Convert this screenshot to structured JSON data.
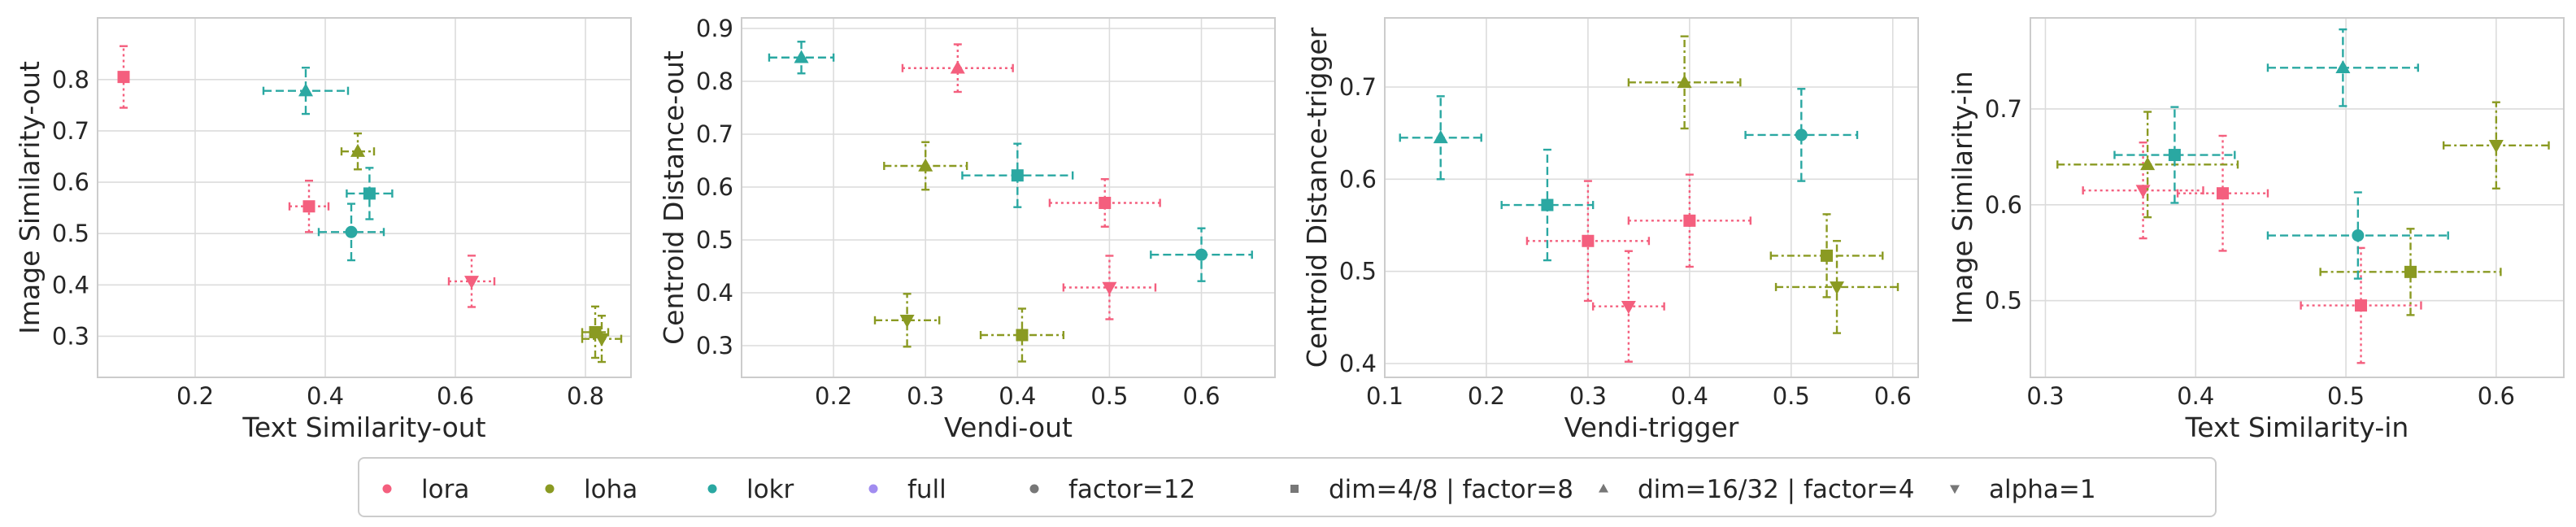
{
  "colors": {
    "lora": "#f45f7e",
    "loha": "#8a9a22",
    "lokr": "#2aa8a2",
    "full": "#a18cf0",
    "neutral": "#777777",
    "grid": "#dcdcdc",
    "frame": "#cccccc",
    "text": "#262626"
  },
  "legend": {
    "entries": [
      {
        "label": "lora",
        "color": "lora",
        "marker": "dot"
      },
      {
        "label": "loha",
        "color": "loha",
        "marker": "dot"
      },
      {
        "label": "lokr",
        "color": "lokr",
        "marker": "dot"
      },
      {
        "label": "full",
        "color": "full",
        "marker": "dot"
      },
      {
        "label": "factor=12",
        "color": "neutral",
        "marker": "dot"
      },
      {
        "label": "dim=4/8 | factor=8",
        "color": "neutral",
        "marker": "square"
      },
      {
        "label": "dim=16/32 | factor=4",
        "color": "neutral",
        "marker": "triangle"
      },
      {
        "label": "alpha=1",
        "color": "neutral",
        "marker": "tri-down"
      }
    ]
  },
  "chart_data": [
    {
      "type": "scatter",
      "xlabel": "Text Similarity-out",
      "ylabel": "Image Similarity-out",
      "xlim": [
        0.05,
        0.87
      ],
      "ylim": [
        0.22,
        0.92
      ],
      "xticks": [
        0.2,
        0.4,
        0.6,
        0.8
      ],
      "yticks": [
        0.3,
        0.4,
        0.5,
        0.6,
        0.7,
        0.8
      ],
      "tick_decimals": 1,
      "grid": true,
      "points": [
        {
          "algo": "lora",
          "marker": "square",
          "x": 0.09,
          "y": 0.805,
          "xerr": 0.0,
          "yerr": 0.06
        },
        {
          "algo": "lora",
          "marker": "square",
          "x": 0.375,
          "y": 0.553,
          "xerr": 0.03,
          "yerr": 0.05
        },
        {
          "algo": "lora",
          "marker": "tri-down",
          "x": 0.625,
          "y": 0.407,
          "xerr": 0.035,
          "yerr": 0.05
        },
        {
          "algo": "loha",
          "marker": "triangle",
          "x": 0.45,
          "y": 0.66,
          "xerr": 0.025,
          "yerr": 0.035
        },
        {
          "algo": "loha",
          "marker": "square",
          "x": 0.815,
          "y": 0.308,
          "xerr": 0.02,
          "yerr": 0.05
        },
        {
          "algo": "loha",
          "marker": "tri-down",
          "x": 0.825,
          "y": 0.295,
          "xerr": 0.03,
          "yerr": 0.045
        },
        {
          "algo": "lokr",
          "marker": "triangle",
          "x": 0.37,
          "y": 0.778,
          "xerr": 0.065,
          "yerr": 0.045
        },
        {
          "algo": "lokr",
          "marker": "square",
          "x": 0.468,
          "y": 0.578,
          "xerr": 0.035,
          "yerr": 0.05
        },
        {
          "algo": "lokr",
          "marker": "dot",
          "x": 0.44,
          "y": 0.503,
          "xerr": 0.05,
          "yerr": 0.055
        }
      ]
    },
    {
      "type": "scatter",
      "xlabel": "Vendi-out",
      "ylabel": "Centroid Distance-out",
      "xlim": [
        0.1,
        0.68
      ],
      "ylim": [
        0.24,
        0.92
      ],
      "xticks": [
        0.2,
        0.3,
        0.4,
        0.5,
        0.6
      ],
      "yticks": [
        0.3,
        0.4,
        0.5,
        0.6,
        0.7,
        0.8,
        0.9
      ],
      "tick_decimals": 1,
      "grid": true,
      "points": [
        {
          "algo": "lora",
          "marker": "triangle",
          "x": 0.335,
          "y": 0.825,
          "xerr": 0.06,
          "yerr": 0.045
        },
        {
          "algo": "lora",
          "marker": "square",
          "x": 0.495,
          "y": 0.57,
          "xerr": 0.06,
          "yerr": 0.045
        },
        {
          "algo": "lora",
          "marker": "tri-down",
          "x": 0.5,
          "y": 0.41,
          "xerr": 0.05,
          "yerr": 0.06
        },
        {
          "algo": "loha",
          "marker": "triangle",
          "x": 0.3,
          "y": 0.64,
          "xerr": 0.045,
          "yerr": 0.045
        },
        {
          "algo": "loha",
          "marker": "tri-down",
          "x": 0.28,
          "y": 0.348,
          "xerr": 0.035,
          "yerr": 0.05
        },
        {
          "algo": "loha",
          "marker": "square",
          "x": 0.405,
          "y": 0.32,
          "xerr": 0.045,
          "yerr": 0.05
        },
        {
          "algo": "lokr",
          "marker": "triangle",
          "x": 0.165,
          "y": 0.845,
          "xerr": 0.035,
          "yerr": 0.03
        },
        {
          "algo": "lokr",
          "marker": "square",
          "x": 0.4,
          "y": 0.622,
          "xerr": 0.06,
          "yerr": 0.06
        },
        {
          "algo": "lokr",
          "marker": "dot",
          "x": 0.6,
          "y": 0.472,
          "xerr": 0.055,
          "yerr": 0.05
        }
      ]
    },
    {
      "type": "scatter",
      "xlabel": "Vendi-trigger",
      "ylabel": "Centroid Distance-trigger",
      "xlim": [
        0.1,
        0.625
      ],
      "ylim": [
        0.385,
        0.775
      ],
      "xticks": [
        0.1,
        0.2,
        0.3,
        0.4,
        0.5,
        0.6
      ],
      "yticks": [
        0.4,
        0.5,
        0.6,
        0.7
      ],
      "tick_decimals": 1,
      "grid": true,
      "points": [
        {
          "algo": "lora",
          "marker": "square",
          "x": 0.3,
          "y": 0.533,
          "xerr": 0.06,
          "yerr": 0.065
        },
        {
          "algo": "lora",
          "marker": "square",
          "x": 0.4,
          "y": 0.555,
          "xerr": 0.06,
          "yerr": 0.05
        },
        {
          "algo": "lora",
          "marker": "tri-down",
          "x": 0.34,
          "y": 0.462,
          "xerr": 0.035,
          "yerr": 0.06
        },
        {
          "algo": "loha",
          "marker": "triangle",
          "x": 0.395,
          "y": 0.705,
          "xerr": 0.055,
          "yerr": 0.05
        },
        {
          "algo": "loha",
          "marker": "square",
          "x": 0.535,
          "y": 0.517,
          "xerr": 0.055,
          "yerr": 0.045
        },
        {
          "algo": "loha",
          "marker": "tri-down",
          "x": 0.545,
          "y": 0.483,
          "xerr": 0.06,
          "yerr": 0.05
        },
        {
          "algo": "lokr",
          "marker": "triangle",
          "x": 0.155,
          "y": 0.645,
          "xerr": 0.04,
          "yerr": 0.045
        },
        {
          "algo": "lokr",
          "marker": "square",
          "x": 0.26,
          "y": 0.572,
          "xerr": 0.045,
          "yerr": 0.06
        },
        {
          "algo": "lokr",
          "marker": "dot",
          "x": 0.51,
          "y": 0.648,
          "xerr": 0.055,
          "yerr": 0.05
        }
      ]
    },
    {
      "type": "scatter",
      "xlabel": "Text Similarity-in",
      "ylabel": "Image Similarity-in",
      "xlim": [
        0.29,
        0.645
      ],
      "ylim": [
        0.42,
        0.795
      ],
      "xticks": [
        0.3,
        0.4,
        0.5,
        0.6
      ],
      "yticks": [
        0.5,
        0.6,
        0.7
      ],
      "tick_decimals": 1,
      "grid": true,
      "points": [
        {
          "algo": "lora",
          "marker": "tri-down",
          "x": 0.365,
          "y": 0.615,
          "xerr": 0.04,
          "yerr": 0.05
        },
        {
          "algo": "lora",
          "marker": "square",
          "x": 0.418,
          "y": 0.612,
          "xerr": 0.03,
          "yerr": 0.06
        },
        {
          "algo": "lora",
          "marker": "square",
          "x": 0.51,
          "y": 0.495,
          "xerr": 0.04,
          "yerr": 0.06
        },
        {
          "algo": "loha",
          "marker": "triangle",
          "x": 0.368,
          "y": 0.642,
          "xerr": 0.06,
          "yerr": 0.055
        },
        {
          "algo": "loha",
          "marker": "square",
          "x": 0.543,
          "y": 0.53,
          "xerr": 0.06,
          "yerr": 0.045
        },
        {
          "algo": "loha",
          "marker": "tri-down",
          "x": 0.6,
          "y": 0.662,
          "xerr": 0.035,
          "yerr": 0.045
        },
        {
          "algo": "lokr",
          "marker": "square",
          "x": 0.386,
          "y": 0.652,
          "xerr": 0.04,
          "yerr": 0.05
        },
        {
          "algo": "lokr",
          "marker": "triangle",
          "x": 0.498,
          "y": 0.743,
          "xerr": 0.05,
          "yerr": 0.04
        },
        {
          "algo": "lokr",
          "marker": "dot",
          "x": 0.508,
          "y": 0.568,
          "xerr": 0.06,
          "yerr": 0.045
        }
      ]
    }
  ]
}
